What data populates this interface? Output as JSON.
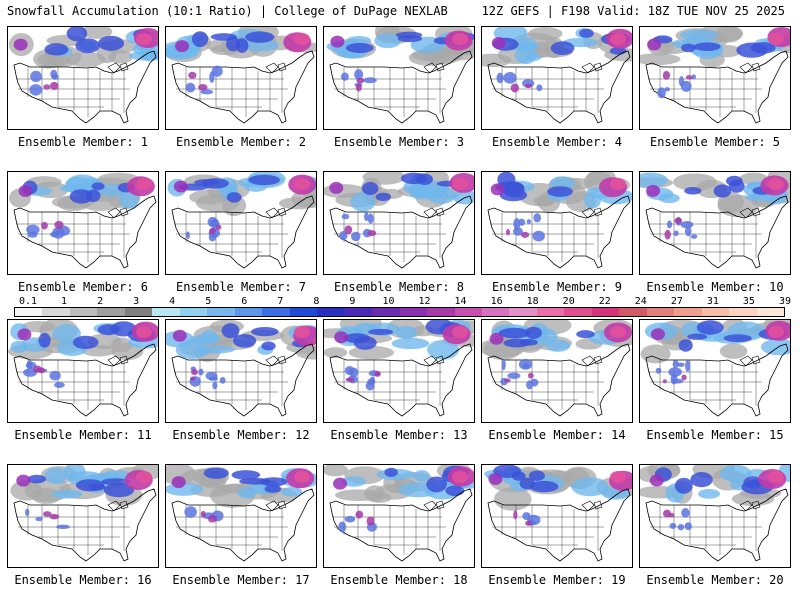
{
  "header": {
    "title": "Snowfall Accumulation (10:1 Ratio) | College of DuPage NEXLAB",
    "run_info": "12Z GEFS | F198 Valid: 18Z TUE NOV 25 2025"
  },
  "members": [
    {
      "label": "Ensemble Member: 1"
    },
    {
      "label": "Ensemble Member: 2"
    },
    {
      "label": "Ensemble Member: 3"
    },
    {
      "label": "Ensemble Member: 4"
    },
    {
      "label": "Ensemble Member: 5"
    },
    {
      "label": "Ensemble Member: 6"
    },
    {
      "label": "Ensemble Member: 7"
    },
    {
      "label": "Ensemble Member: 8"
    },
    {
      "label": "Ensemble Member: 9"
    },
    {
      "label": "Ensemble Member: 10"
    },
    {
      "label": "Ensemble Member: 11"
    },
    {
      "label": "Ensemble Member: 12"
    },
    {
      "label": "Ensemble Member: 13"
    },
    {
      "label": "Ensemble Member: 14"
    },
    {
      "label": "Ensemble Member: 15"
    },
    {
      "label": "Ensemble Member: 16"
    },
    {
      "label": "Ensemble Member: 17"
    },
    {
      "label": "Ensemble Member: 18"
    },
    {
      "label": "Ensemble Member: 19"
    },
    {
      "label": "Ensemble Member: 20"
    }
  ],
  "colorbar": {
    "labels": [
      "0.1",
      "1",
      "2",
      "3",
      "4",
      "5",
      "6",
      "7",
      "8",
      "9",
      "10",
      "12",
      "14",
      "16",
      "18",
      "20",
      "22",
      "24",
      "27",
      "31",
      "35",
      "39"
    ],
    "colors": [
      "#f4f4f4",
      "#d9d9d9",
      "#bdbdbd",
      "#a0a0a0",
      "#7f7f7f",
      "#b8e6f5",
      "#8fd1ef",
      "#78b6ee",
      "#5b96ea",
      "#3c6fe6",
      "#1f4ad8",
      "#2a2fc0",
      "#4a28b8",
      "#6a2bb0",
      "#8a2fb0",
      "#a73aa8",
      "#c64fb0",
      "#d870c0",
      "#e58fc8",
      "#ea6fa6",
      "#e24d8e",
      "#d63579",
      "#cf5a6a",
      "#e07f7c",
      "#ef9f90",
      "#f6bda8",
      "#fad4c0",
      "#fce6d8"
    ]
  }
}
